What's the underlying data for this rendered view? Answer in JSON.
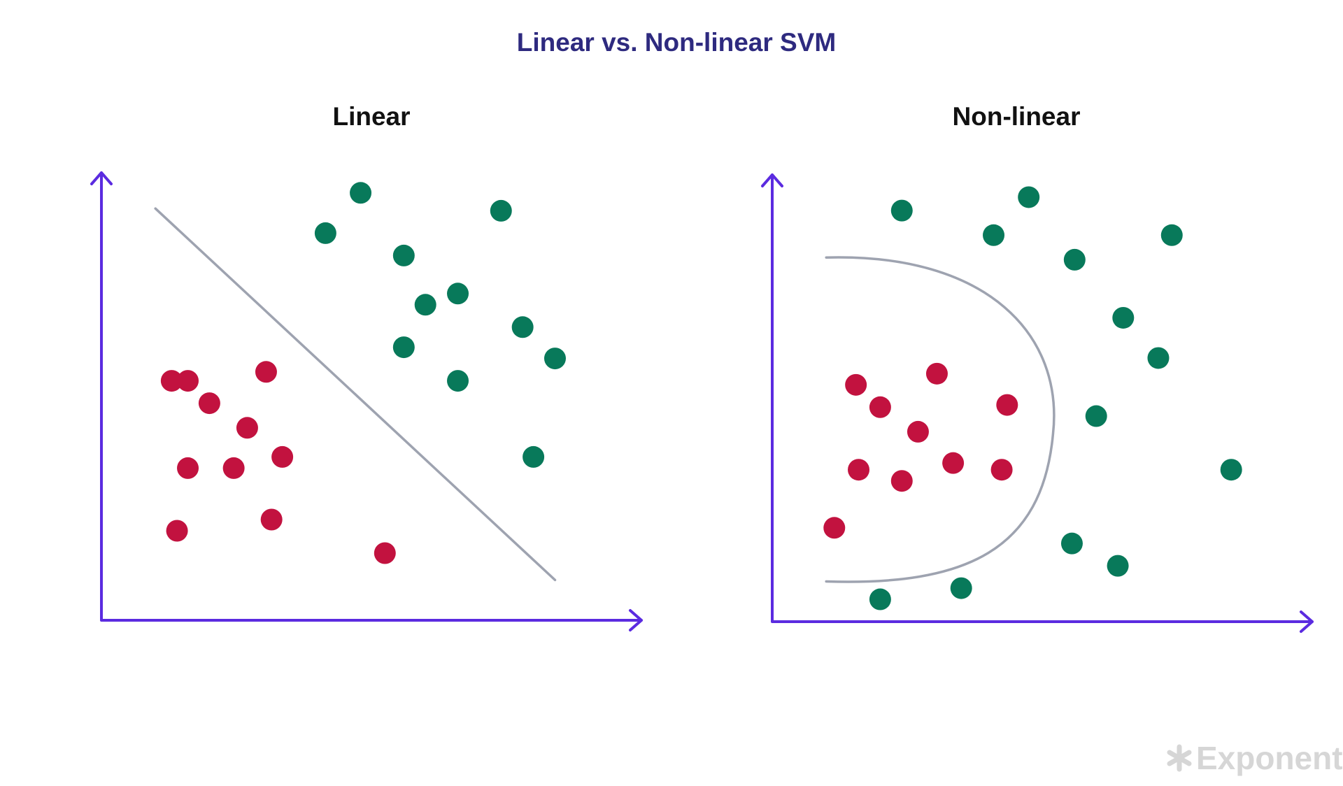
{
  "title": "Linear vs. Non-linear SVM",
  "colors": {
    "title": "#2e2a7f",
    "panel_title": "#111111",
    "axis": "#5b2be0",
    "boundary": "#9ea3b0",
    "class_a": "#c2123f",
    "class_b": "#08795a",
    "brand": "#d6d6d6"
  },
  "brand": {
    "name": "Exponent",
    "icon": "asterisk-icon"
  },
  "chart_data": [
    {
      "type": "scatter",
      "title": "Linear",
      "xlim": [
        0,
        100
      ],
      "ylim": [
        0,
        100
      ],
      "boundary": {
        "kind": "line",
        "points": [
          [
            10,
            92
          ],
          [
            84,
            9
          ]
        ]
      },
      "series": [
        {
          "class": "class_a",
          "points": [
            [
              16,
              53.5
            ],
            [
              20,
              48.5
            ],
            [
              13,
              53.5
            ],
            [
              27,
              43
            ],
            [
              30.5,
              55.5
            ],
            [
              33.5,
              36.5
            ],
            [
              24.5,
              34
            ],
            [
              16,
              34
            ],
            [
              31.5,
              22.5
            ],
            [
              14,
              20
            ],
            [
              52.5,
              15
            ]
          ]
        },
        {
          "class": "class_b",
          "points": [
            [
              48,
              95.5
            ],
            [
              41.5,
              86.5
            ],
            [
              56,
              81.5
            ],
            [
              74,
              91.5
            ],
            [
              60,
              70.5
            ],
            [
              66,
              73
            ],
            [
              78,
              65.5
            ],
            [
              56,
              61
            ],
            [
              84,
              58.5
            ],
            [
              66,
              53.5
            ],
            [
              80,
              36.5
            ]
          ]
        }
      ]
    },
    {
      "type": "scatter",
      "title": "Non-linear",
      "xlim": [
        0,
        100
      ],
      "ylim": [
        0,
        100
      ],
      "boundary": {
        "kind": "curve",
        "points": [
          [
            10,
            81.5
          ],
          [
            52,
            42
          ],
          [
            10,
            9
          ]
        ]
      },
      "series": [
        {
          "class": "class_a",
          "points": [
            [
              15.5,
              53
            ],
            [
              20,
              48
            ],
            [
              30.5,
              55.5
            ],
            [
              27,
              42.5
            ],
            [
              43.5,
              48.5
            ],
            [
              16,
              34
            ],
            [
              24,
              31.5
            ],
            [
              33.5,
              35.5
            ],
            [
              42.5,
              34
            ],
            [
              11.5,
              21
            ]
          ]
        },
        {
          "class": "class_b",
          "points": [
            [
              24,
              92
            ],
            [
              47.5,
              95
            ],
            [
              41,
              86.5
            ],
            [
              56,
              81
            ],
            [
              74,
              86.5
            ],
            [
              65,
              68
            ],
            [
              71.5,
              59
            ],
            [
              60,
              46
            ],
            [
              85,
              34
            ],
            [
              55.5,
              17.5
            ],
            [
              64,
              12.5
            ],
            [
              20,
              5
            ],
            [
              35,
              7.5
            ]
          ]
        }
      ]
    }
  ]
}
